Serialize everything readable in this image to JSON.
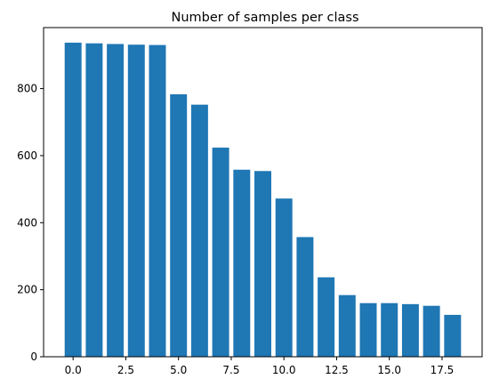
{
  "chart_data": {
    "type": "bar",
    "title": "Number of samples per class",
    "xlabel": "",
    "ylabel": "",
    "x": [
      0,
      1,
      2,
      3,
      4,
      5,
      6,
      7,
      8,
      9,
      10,
      11,
      12,
      13,
      14,
      15,
      16,
      17,
      18
    ],
    "values": [
      937,
      935,
      933,
      931,
      930,
      783,
      752,
      624,
      558,
      554,
      472,
      357,
      237,
      184,
      160,
      160,
      157,
      152,
      125
    ],
    "xlim": [
      -1.4,
      19.4
    ],
    "ylim": [
      0,
      982
    ],
    "xticks": [
      0.0,
      2.5,
      5.0,
      7.5,
      10.0,
      12.5,
      15.0,
      17.5
    ],
    "xtick_labels": [
      "0.0",
      "2.5",
      "5.0",
      "7.5",
      "10.0",
      "12.5",
      "15.0",
      "17.5"
    ],
    "yticks": [
      0,
      200,
      400,
      600,
      800
    ],
    "ytick_labels": [
      "0",
      "200",
      "400",
      "600",
      "800"
    ],
    "bar_width": 0.8,
    "bar_color": "#1f77b4",
    "grid": false,
    "legend": "none"
  }
}
